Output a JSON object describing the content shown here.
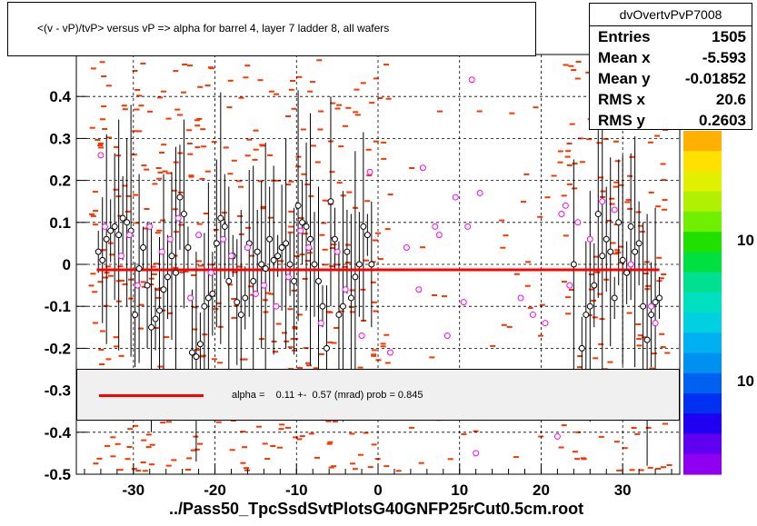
{
  "title": "<(v - vP)/tvP> versus   vP => alpha for barrel 4, layer 7 ladder 8, all wafers",
  "stats": {
    "name": "dvOvertvPvP7008",
    "rows": [
      {
        "label": "Entries",
        "value": "1505"
      },
      {
        "label": "Mean x",
        "value": "-5.593"
      },
      {
        "label": "Mean y",
        "value": "-0.01852"
      },
      {
        "label": "RMS x",
        "value": "20.6"
      },
      {
        "label": "RMS y",
        "value": "0.2603"
      }
    ]
  },
  "fit": {
    "text": "alpha =    0.11 +-  0.57 (mrad) prob = 0.845",
    "color": "#ff0000"
  },
  "footer": "../Pass50_TpcSsdSvtPlotsG40GNFP25rCut0.5cm.root",
  "colorbar": {
    "labels": [
      "10",
      "10"
    ],
    "colors": [
      "#ffb000",
      "#ffe000",
      "#e0f000",
      "#b0f000",
      "#70f000",
      "#20e000",
      "#00e040",
      "#00e090",
      "#00e0c0",
      "#00d0e0",
      "#00b0f0",
      "#0090f0",
      "#0060f0",
      "#0030f0",
      "#2000f0",
      "#6000f0",
      "#9000f0"
    ]
  },
  "chart_data": {
    "type": "scatter",
    "xlim": [
      -37,
      37
    ],
    "ylim": [
      -0.5,
      0.5
    ],
    "xticks": [
      "-30",
      "-20",
      "-10",
      "0",
      "10",
      "20",
      "30"
    ],
    "yticks": [
      "-0.5",
      "-0.4",
      "-0.3",
      "-0.2",
      "-0.1",
      "0",
      "0.1",
      "0.2",
      "0.3",
      "0.4"
    ],
    "grid": true,
    "colors": {
      "profile": "#000000",
      "open_points": "#ff00ff",
      "hist_cells": "#ff3300",
      "fit": "#ff0000"
    },
    "fit_line": {
      "y": -0.013
    },
    "profile_points": [
      {
        "x": -34.3,
        "y": 0.03
      },
      {
        "x": -33.8,
        "y": 0.01
      },
      {
        "x": -33.3,
        "y": 0.06
      },
      {
        "x": -32.8,
        "y": 0.08
      },
      {
        "x": -32.3,
        "y": 0.09
      },
      {
        "x": -31.8,
        "y": 0.07
      },
      {
        "x": -31.3,
        "y": 0.11
      },
      {
        "x": -30.8,
        "y": 0.1
      },
      {
        "x": -30.3,
        "y": 0.08
      },
      {
        "x": -29.8,
        "y": -0.12
      },
      {
        "x": -29.3,
        "y": -0.01
      },
      {
        "x": -28.8,
        "y": 0.04
      },
      {
        "x": -28.3,
        "y": -0.05
      },
      {
        "x": -27.8,
        "y": -0.15
      },
      {
        "x": -27.3,
        "y": -0.13
      },
      {
        "x": -26.8,
        "y": -0.11
      },
      {
        "x": -26.3,
        "y": -0.06
      },
      {
        "x": -25.8,
        "y": -0.03
      },
      {
        "x": -25.3,
        "y": 0.02
      },
      {
        "x": -24.8,
        "y": -0.02
      },
      {
        "x": -24.3,
        "y": 0.16
      },
      {
        "x": -23.8,
        "y": 0.12
      },
      {
        "x": -23.3,
        "y": 0.04
      },
      {
        "x": -22.8,
        "y": -0.21
      },
      {
        "x": -22.3,
        "y": -0.22
      },
      {
        "x": -21.8,
        "y": -0.19
      },
      {
        "x": -21.3,
        "y": -0.1
      },
      {
        "x": -20.8,
        "y": -0.08
      },
      {
        "x": -20.3,
        "y": -0.07
      },
      {
        "x": -19.8,
        "y": 0.05
      },
      {
        "x": -19.3,
        "y": 0.11
      },
      {
        "x": -18.8,
        "y": 0.09
      },
      {
        "x": -18.3,
        "y": -0.04
      },
      {
        "x": -17.8,
        "y": 0.02
      },
      {
        "x": -17.3,
        "y": -0.09
      },
      {
        "x": -16.8,
        "y": -0.12
      },
      {
        "x": -16.3,
        "y": -0.08
      },
      {
        "x": -15.8,
        "y": 0.05
      },
      {
        "x": -15.3,
        "y": -0.04
      },
      {
        "x": -14.8,
        "y": 0.03
      },
      {
        "x": -14.3,
        "y": 0.0
      },
      {
        "x": -13.8,
        "y": -0.01
      },
      {
        "x": -13.3,
        "y": 0.06
      },
      {
        "x": -12.8,
        "y": 0.01
      },
      {
        "x": -12.3,
        "y": 0.02
      },
      {
        "x": -11.8,
        "y": 0.04
      },
      {
        "x": -11.3,
        "y": 0.05
      },
      {
        "x": -10.8,
        "y": 0.0
      },
      {
        "x": -10.3,
        "y": -0.04
      },
      {
        "x": -9.8,
        "y": 0.14
      },
      {
        "x": -9.3,
        "y": 0.1
      },
      {
        "x": -8.8,
        "y": 0.09
      },
      {
        "x": -8.3,
        "y": 0.06
      },
      {
        "x": -7.8,
        "y": 0.0
      },
      {
        "x": -7.3,
        "y": -0.04
      },
      {
        "x": -6.8,
        "y": -0.1
      },
      {
        "x": -6.3,
        "y": -0.2
      },
      {
        "x": -5.8,
        "y": 0.15
      },
      {
        "x": -5.3,
        "y": 0.06
      },
      {
        "x": -4.8,
        "y": -0.12
      },
      {
        "x": -4.3,
        "y": -0.1
      },
      {
        "x": -3.8,
        "y": 0.03
      },
      {
        "x": -3.3,
        "y": -0.08
      },
      {
        "x": -2.8,
        "y": -0.03
      },
      {
        "x": -2.3,
        "y": 0.0
      },
      {
        "x": -1.8,
        "y": 0.09
      },
      {
        "x": -1.3,
        "y": 0.07
      },
      {
        "x": -0.8,
        "y": 0.0
      },
      {
        "x": 24.0,
        "y": 0.0
      },
      {
        "x": 25.0,
        "y": -0.2
      },
      {
        "x": 25.5,
        "y": -0.12
      },
      {
        "x": 26.0,
        "y": -0.1
      },
      {
        "x": 26.5,
        "y": -0.05
      },
      {
        "x": 27.0,
        "y": 0.12
      },
      {
        "x": 27.5,
        "y": 0.02
      },
      {
        "x": 28.0,
        "y": 0.06
      },
      {
        "x": 28.5,
        "y": 0.03
      },
      {
        "x": 29.0,
        "y": -0.08
      },
      {
        "x": 29.5,
        "y": 0.1
      },
      {
        "x": 30.0,
        "y": 0.01
      },
      {
        "x": 30.5,
        "y": -0.02
      },
      {
        "x": 31.0,
        "y": 0.09
      },
      {
        "x": 31.5,
        "y": 0.03
      },
      {
        "x": 32.0,
        "y": 0.05
      },
      {
        "x": 32.5,
        "y": -0.1
      },
      {
        "x": 33.0,
        "y": -0.18
      },
      {
        "x": 33.5,
        "y": -0.12
      },
      {
        "x": 34.0,
        "y": -0.09
      },
      {
        "x": 34.5,
        "y": -0.08
      }
    ],
    "open_points": [
      {
        "x": -33.5,
        "y": 0.09
      },
      {
        "x": -31.5,
        "y": 0.02
      },
      {
        "x": -30.5,
        "y": 0.07
      },
      {
        "x": -29.5,
        "y": -0.05
      },
      {
        "x": -28.0,
        "y": 0.09
      },
      {
        "x": -26.5,
        "y": 0.03
      },
      {
        "x": -25.5,
        "y": 0.06
      },
      {
        "x": -24.5,
        "y": 0.11
      },
      {
        "x": -23.0,
        "y": -0.08
      },
      {
        "x": -22.0,
        "y": 0.07
      },
      {
        "x": -20.5,
        "y": -0.02
      },
      {
        "x": -19.0,
        "y": 0.06
      },
      {
        "x": -18.0,
        "y": 0.02
      },
      {
        "x": -16.0,
        "y": 0.04
      },
      {
        "x": -15.0,
        "y": -0.07
      },
      {
        "x": -14.0,
        "y": -0.05
      },
      {
        "x": -12.5,
        "y": -0.1
      },
      {
        "x": -11.0,
        "y": -0.03
      },
      {
        "x": -9.5,
        "y": 0.08
      },
      {
        "x": -8.5,
        "y": 0.04
      },
      {
        "x": -7.0,
        "y": -0.14
      },
      {
        "x": -5.0,
        "y": 0.03
      },
      {
        "x": -4.0,
        "y": -0.06
      },
      {
        "x": -2.0,
        "y": -0.17
      },
      {
        "x": -1.0,
        "y": 0.22
      },
      {
        "x": 1.5,
        "y": -0.21
      },
      {
        "x": 3.5,
        "y": 0.04
      },
      {
        "x": 5.0,
        "y": -0.06
      },
      {
        "x": 5.5,
        "y": 0.23
      },
      {
        "x": 7.0,
        "y": 0.09
      },
      {
        "x": 7.5,
        "y": 0.07
      },
      {
        "x": 8.5,
        "y": -0.17
      },
      {
        "x": 9.5,
        "y": 0.16
      },
      {
        "x": 10.5,
        "y": -0.09
      },
      {
        "x": 11.0,
        "y": 0.09
      },
      {
        "x": 11.5,
        "y": 0.44
      },
      {
        "x": 12.5,
        "y": 0.17
      },
      {
        "x": 17.5,
        "y": -0.08
      },
      {
        "x": 19.0,
        "y": -0.12
      },
      {
        "x": 20.5,
        "y": -0.14
      },
      {
        "x": 22.5,
        "y": 0.12
      },
      {
        "x": 23.0,
        "y": 0.14
      },
      {
        "x": 23.5,
        "y": -0.05
      },
      {
        "x": 24.5,
        "y": 0.1
      },
      {
        "x": 26.0,
        "y": 0.06
      },
      {
        "x": 27.5,
        "y": 0.15
      },
      {
        "x": 29.0,
        "y": 0.13
      },
      {
        "x": 31.0,
        "y": 0.0
      },
      {
        "x": 33.5,
        "y": -0.1
      },
      {
        "x": 34.0,
        "y": -0.14
      },
      {
        "x": -34.0,
        "y": 0.26
      },
      {
        "x": -20.0,
        "y": -0.36
      },
      {
        "x": 12.0,
        "y": -0.45
      },
      {
        "x": 22.0,
        "y": -0.41
      }
    ]
  }
}
